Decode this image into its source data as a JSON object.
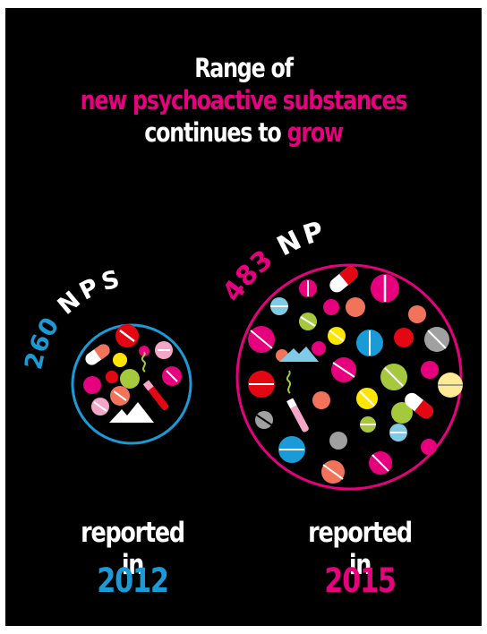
{
  "title": {
    "line1": "Range of",
    "line2": "new psychoactive substances",
    "line3_part1": "continues to ",
    "line3_part2": "grow"
  },
  "left": {
    "number": "260",
    "label": "NPS",
    "caption": "reported in",
    "year": "2012",
    "color": "#1a9bd7"
  },
  "right": {
    "number": "483",
    "label": "NPS",
    "caption": "reported in",
    "year": "2015",
    "color": "#e6007e"
  },
  "palette": {
    "magenta": "#e6007e",
    "blue": "#1a9bd7",
    "orange": "#f0735a",
    "yellow": "#ffe600",
    "lime": "#a6c83c",
    "pink": "#f4a6c8",
    "red": "#e30613",
    "grey": "#a0a0a0",
    "lightblue": "#7fcbe6",
    "cream": "#ffeb96"
  }
}
